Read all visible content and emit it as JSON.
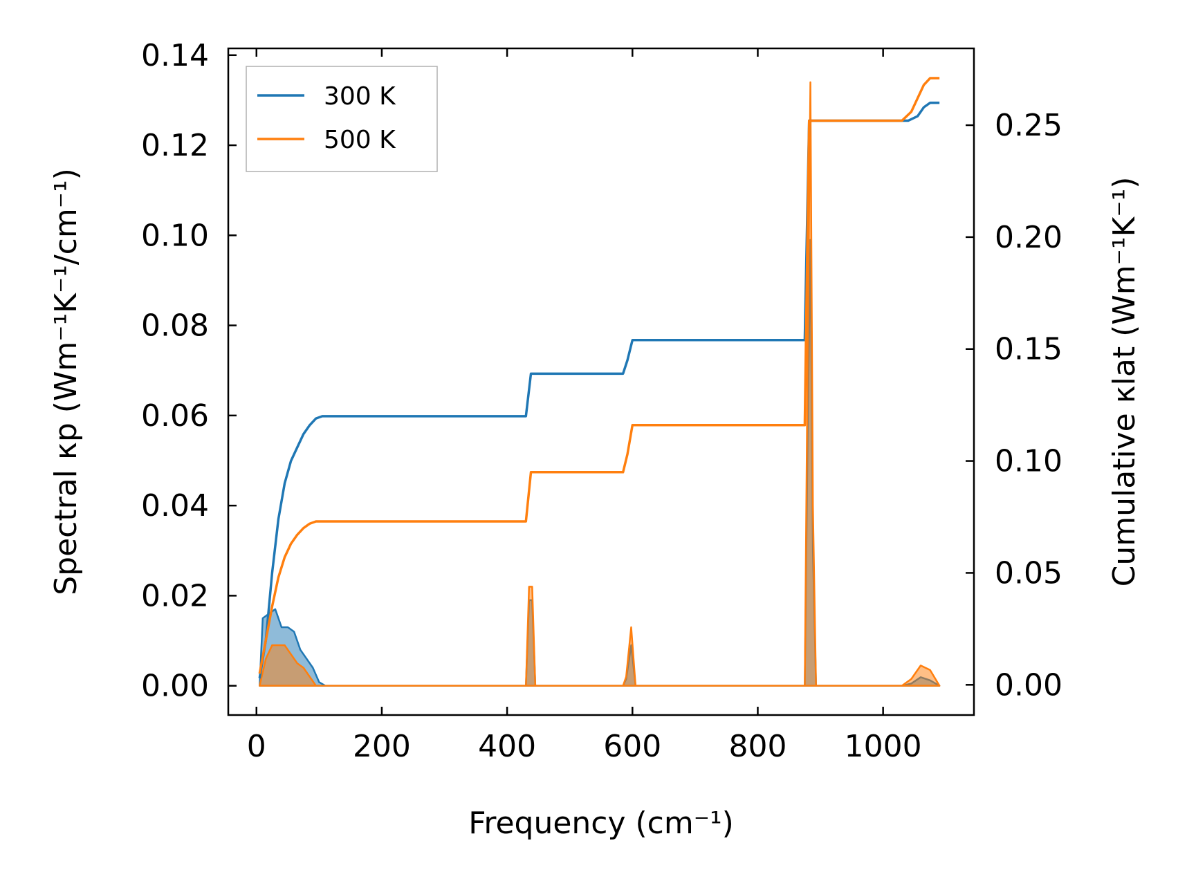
{
  "chart_data": {
    "type": "line",
    "xlabel": "Frequency (cm⁻¹)",
    "ylabel_left": "Spectral κp (Wm⁻¹K⁻¹/cm⁻¹)",
    "ylabel_right": "Cumulative κlat (Wm⁻¹K⁻¹)",
    "xlim": [
      -45,
      1145
    ],
    "ylim_left": [
      -0.0065,
      0.1415
    ],
    "ylim_right": [
      -0.0135,
      0.2843
    ],
    "x_ticks": [
      0,
      200,
      400,
      600,
      800,
      1000
    ],
    "y_ticks_left": [
      0.0,
      0.02,
      0.04,
      0.06,
      0.08,
      0.1,
      0.12,
      0.14
    ],
    "y_ticks_right": [
      0.0,
      0.05,
      0.1,
      0.15,
      0.2,
      0.25
    ],
    "x_tick_labels": [
      "0",
      "200",
      "400",
      "600",
      "800",
      "1000"
    ],
    "y_tick_labels_left": [
      "0.00",
      "0.02",
      "0.04",
      "0.06",
      "0.08",
      "0.10",
      "0.12",
      "0.14"
    ],
    "y_tick_labels_right": [
      "0.00",
      "0.05",
      "0.10",
      "0.15",
      "0.20",
      "0.25"
    ],
    "legend": {
      "location": "top-left",
      "entries": [
        "300 K",
        "500 K"
      ]
    },
    "series": [
      {
        "name": "300 K",
        "color": "#1f77b4",
        "cumulative": {
          "axis": "right",
          "x": [
            5,
            15,
            25,
            35,
            45,
            55,
            65,
            75,
            85,
            95,
            105,
            430,
            438,
            445,
            585,
            592,
            600,
            605,
            875,
            882,
            1040,
            1055,
            1065,
            1075,
            1090
          ],
          "y": [
            0.003,
            0.02,
            0.05,
            0.074,
            0.09,
            0.1,
            0.106,
            0.112,
            0.116,
            0.119,
            0.12,
            0.12,
            0.139,
            0.139,
            0.139,
            0.145,
            0.154,
            0.154,
            0.154,
            0.252,
            0.252,
            0.254,
            0.258,
            0.26,
            0.26
          ]
        },
        "spectral": {
          "axis": "left",
          "x": [
            5,
            10,
            20,
            30,
            40,
            50,
            60,
            70,
            80,
            90,
            100,
            110,
            430,
            435,
            440,
            445,
            585,
            590,
            598,
            605,
            875,
            880,
            884,
            888,
            893,
            1030,
            1045,
            1060,
            1075,
            1090
          ],
          "y": [
            0.0,
            0.015,
            0.016,
            0.017,
            0.013,
            0.013,
            0.012,
            0.008,
            0.006,
            0.004,
            0.0008,
            0.0,
            0.0,
            0.019,
            0.019,
            0.0,
            0.0,
            0.0015,
            0.009,
            0.0,
            0.0,
            0.06,
            0.099,
            0.03,
            0.0,
            0.0,
            0.0005,
            0.0019,
            0.0012,
            0.0
          ]
        }
      },
      {
        "name": "500 K",
        "color": "#ff7f0e",
        "cumulative": {
          "axis": "right",
          "x": [
            5,
            15,
            25,
            35,
            45,
            55,
            65,
            75,
            85,
            95,
            430,
            438,
            445,
            585,
            592,
            600,
            605,
            875,
            882,
            1030,
            1045,
            1055,
            1065,
            1075,
            1090
          ],
          "y": [
            0.005,
            0.02,
            0.035,
            0.048,
            0.057,
            0.063,
            0.067,
            0.07,
            0.072,
            0.073,
            0.073,
            0.095,
            0.095,
            0.095,
            0.103,
            0.116,
            0.116,
            0.116,
            0.252,
            0.252,
            0.256,
            0.262,
            0.268,
            0.271,
            0.271
          ]
        },
        "spectral": {
          "axis": "left",
          "x": [
            5,
            15,
            25,
            35,
            45,
            55,
            65,
            75,
            85,
            90,
            95,
            430,
            435,
            440,
            445,
            585,
            590,
            598,
            605,
            875,
            880,
            884,
            888,
            893,
            1030,
            1045,
            1060,
            1075,
            1090
          ],
          "y": [
            0.0,
            0.006,
            0.009,
            0.009,
            0.009,
            0.007,
            0.005,
            0.004,
            0.002,
            0.001,
            0.0,
            0.0,
            0.022,
            0.022,
            0.0,
            0.0,
            0.002,
            0.013,
            0.0,
            0.0,
            0.08,
            0.134,
            0.04,
            0.0,
            0.0,
            0.0015,
            0.0045,
            0.0035,
            0.0
          ]
        }
      }
    ]
  }
}
